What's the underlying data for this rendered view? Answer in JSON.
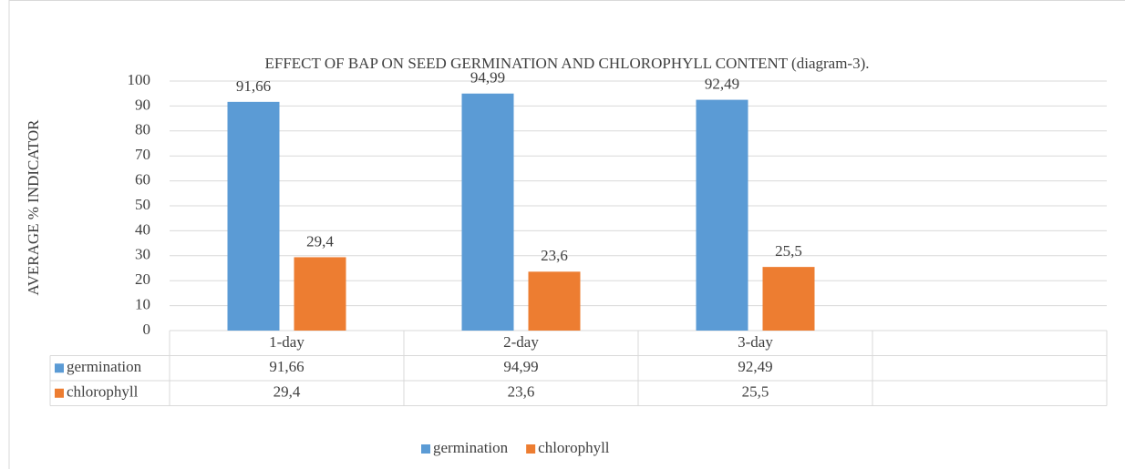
{
  "chart_data": {
    "type": "bar",
    "title": "EFFECT OF BAP ON SEED GERMINATION AND CHLOROPHYLL CONTENT (diagram-3).",
    "y_label": "AVERAGE %  INDICATOR",
    "categories": [
      "1-day",
      "2-day",
      "3-day",
      null
    ],
    "series": [
      {
        "name": "germination",
        "color": "#5b9bd5",
        "values": [
          91.66,
          94.99,
          92.49,
          null
        ],
        "value_labels": [
          "91,66",
          "94,99",
          "92,49",
          null
        ]
      },
      {
        "name": "chlorophyll",
        "color": "#ed7d31",
        "values": [
          29.4,
          23.6,
          25.5,
          null
        ],
        "value_labels": [
          "29,4",
          "23,6",
          "25,5",
          null
        ]
      }
    ],
    "ylim": [
      0,
      100
    ],
    "yticks": [
      0,
      10,
      20,
      30,
      40,
      50,
      60,
      70,
      80,
      90,
      100
    ],
    "grid": true,
    "data_table": true,
    "legend": "bottom"
  }
}
